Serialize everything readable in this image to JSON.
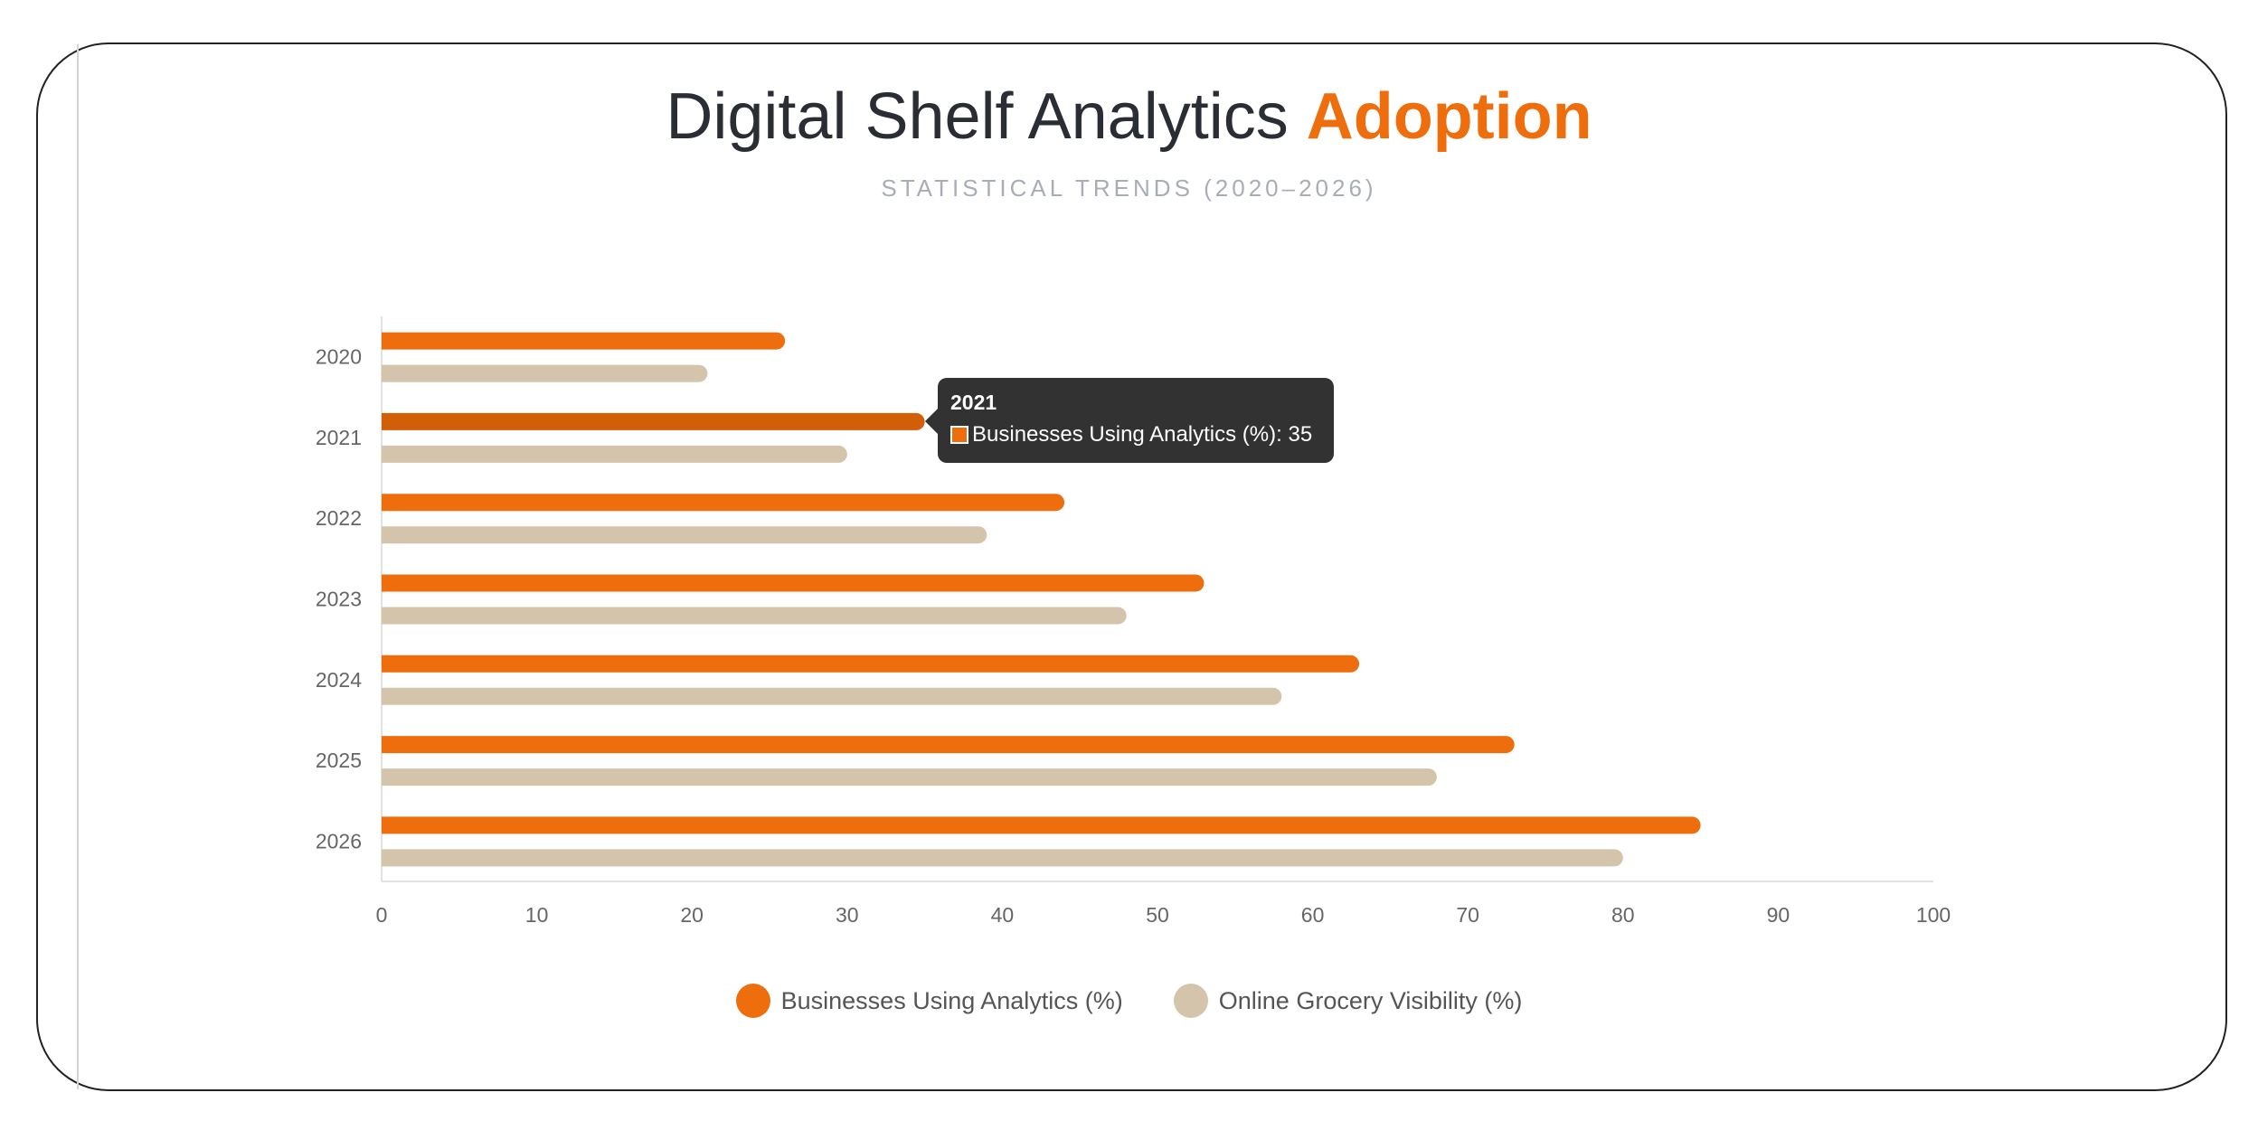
{
  "title": {
    "main": "Digital Shelf Analytics",
    "accent": "Adoption"
  },
  "subtitle": "STATISTICAL TRENDS (2020–2026)",
  "colors": {
    "analytics": "#ee6d0c",
    "analytics_hover": "#d35e08",
    "grocery": "#d3c4ab",
    "axis": "#e2e2e2",
    "tooltip_bg": "#323232"
  },
  "chart_data": {
    "type": "bar",
    "orientation": "horizontal",
    "categories": [
      "2020",
      "2021",
      "2022",
      "2023",
      "2024",
      "2025",
      "2026"
    ],
    "series": [
      {
        "name": "Businesses Using Analytics (%)",
        "values": [
          26,
          35,
          44,
          53,
          63,
          73,
          85
        ]
      },
      {
        "name": "Online Grocery Visibility (%)",
        "values": [
          21,
          30,
          39,
          48,
          58,
          68,
          80
        ]
      }
    ],
    "xlim": [
      0,
      100
    ],
    "x_ticks": [
      "0",
      "10",
      "20",
      "30",
      "40",
      "50",
      "60",
      "70",
      "80",
      "90",
      "100"
    ],
    "grid": false,
    "legend_position": "bottom"
  },
  "tooltip": {
    "title": "2021",
    "series": "Businesses Using Analytics (%)",
    "value": "35",
    "text": "Businesses Using Analytics (%): 35"
  }
}
